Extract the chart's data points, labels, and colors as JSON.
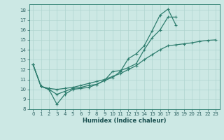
{
  "xlabel": "Humidex (Indice chaleur)",
  "background_color": "#cce8e4",
  "grid_color": "#aed4cf",
  "line_color": "#2e7d6e",
  "xlim": [
    -0.5,
    23.5
  ],
  "ylim": [
    8,
    18.6
  ],
  "xticks": [
    0,
    1,
    2,
    3,
    4,
    5,
    6,
    7,
    8,
    9,
    10,
    11,
    12,
    13,
    14,
    15,
    16,
    17,
    18,
    19,
    20,
    21,
    22,
    23
  ],
  "yticks": [
    8,
    9,
    10,
    11,
    12,
    13,
    14,
    15,
    16,
    17,
    18
  ],
  "line1_x": [
    0,
    1,
    2,
    3,
    4,
    5,
    6,
    7,
    8,
    9,
    10,
    11,
    12,
    13,
    14,
    15,
    16,
    17,
    18
  ],
  "line1_y": [
    12.5,
    10.3,
    10.0,
    8.5,
    9.5,
    10.0,
    10.1,
    10.2,
    10.5,
    10.9,
    11.2,
    11.8,
    13.1,
    13.6,
    14.4,
    15.9,
    17.5,
    18.1,
    16.5
  ],
  "line2_x": [
    0,
    1,
    2,
    3,
    4,
    5,
    6,
    7,
    8,
    9,
    10,
    11,
    12,
    13,
    14,
    15,
    16,
    17,
    18
  ],
  "line2_y": [
    12.5,
    10.3,
    10.0,
    9.5,
    9.8,
    10.1,
    10.2,
    10.4,
    10.5,
    10.9,
    11.8,
    11.9,
    12.2,
    12.6,
    14.0,
    15.2,
    16.0,
    17.3,
    17.3
  ],
  "line3_x": [
    0,
    1,
    2,
    3,
    4,
    5,
    6,
    7,
    8,
    9,
    10,
    11,
    12,
    13,
    14,
    15,
    16,
    17,
    18,
    19,
    20,
    21,
    22,
    23
  ],
  "line3_y": [
    12.5,
    10.3,
    10.1,
    10.0,
    10.1,
    10.2,
    10.4,
    10.6,
    10.8,
    11.0,
    11.3,
    11.6,
    12.0,
    12.4,
    13.0,
    13.5,
    14.0,
    14.4,
    14.5,
    14.6,
    14.7,
    14.85,
    14.95,
    15.0
  ]
}
